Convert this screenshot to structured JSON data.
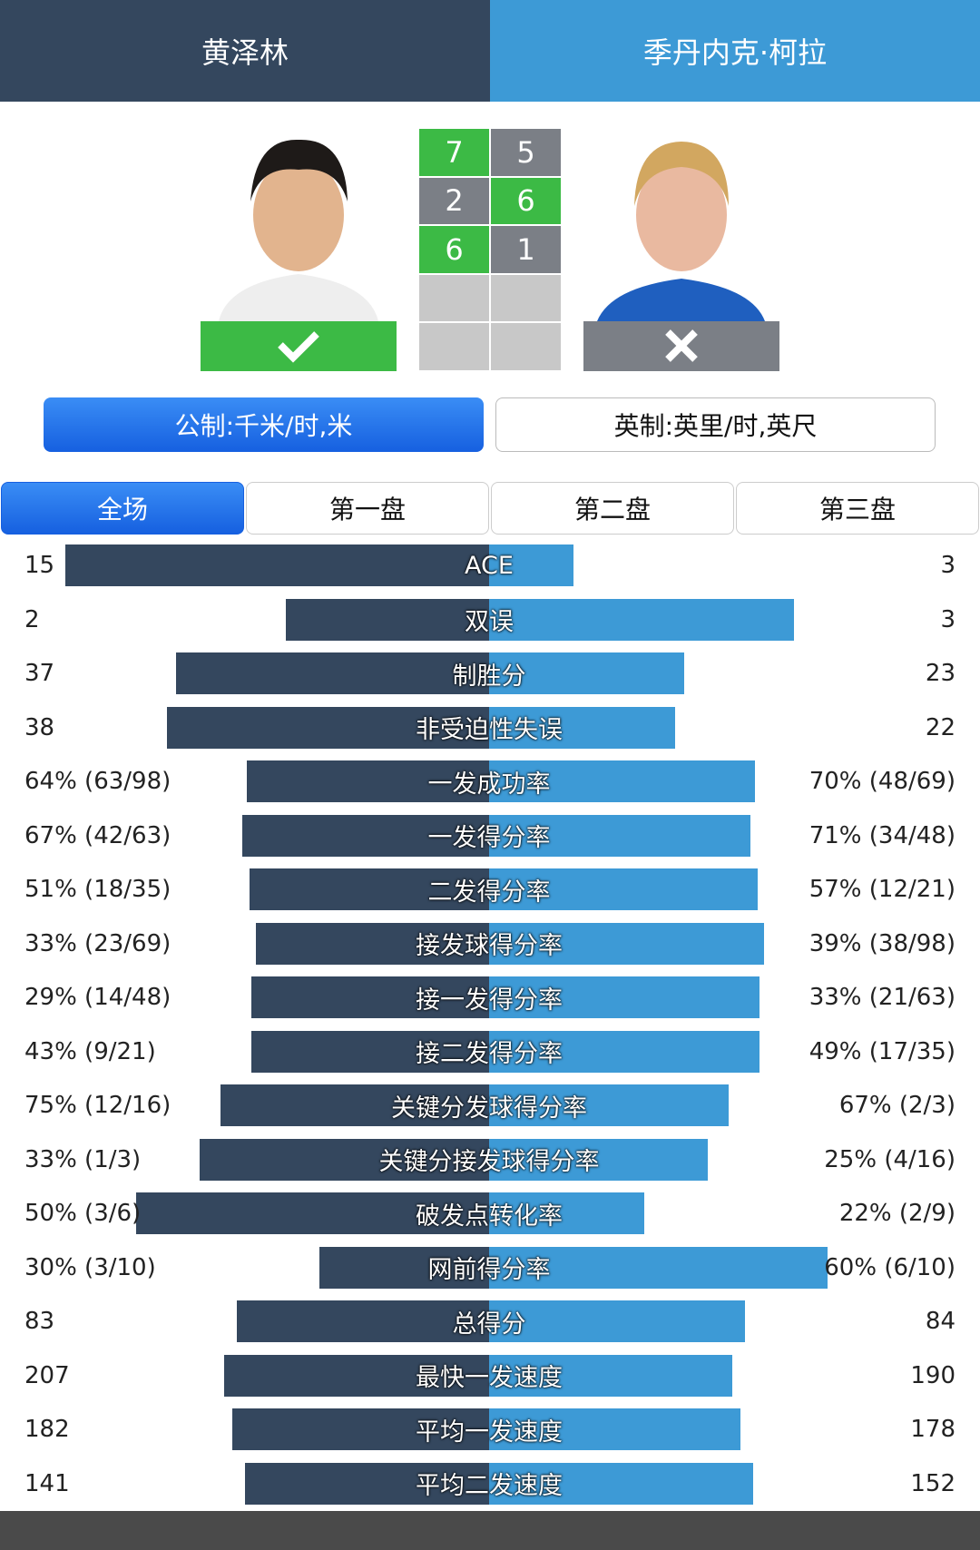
{
  "header": {
    "player1": "黄泽林",
    "player2": "季丹内克·柯拉"
  },
  "score": {
    "rows": [
      [
        7,
        5
      ],
      [
        2,
        6
      ],
      [
        6,
        1
      ],
      [
        null,
        null
      ],
      [
        null,
        null
      ]
    ],
    "winner": "player1"
  },
  "units": {
    "metric": "公制:千米/时,米",
    "imperial": "英制:英里/时,英尺"
  },
  "tabs": [
    "全场",
    "第一盘",
    "第二盘",
    "第三盘"
  ],
  "stats": [
    {
      "name": "ACE",
      "left": 15,
      "right": 3
    },
    {
      "name": "双误",
      "left": 2,
      "right": 3
    },
    {
      "name": "制胜分",
      "left": 37,
      "right": 23
    },
    {
      "name": "非受迫性失误",
      "left": 38,
      "right": 22
    },
    {
      "name": "一发成功率",
      "left": {
        "value": 64,
        "label": "64% (63/98)"
      },
      "right": {
        "value": 70,
        "label": "70% (48/69)"
      }
    },
    {
      "name": "一发得分率",
      "left": {
        "value": 67,
        "label": "67% (42/63)"
      },
      "right": {
        "value": 71,
        "label": "71% (34/48)"
      }
    },
    {
      "name": "二发得分率",
      "left": {
        "value": 51,
        "label": "51% (18/35)"
      },
      "right": {
        "value": 57,
        "label": "57% (12/21)"
      }
    },
    {
      "name": "接发球得分率",
      "left": {
        "value": 33,
        "label": "33% (23/69)"
      },
      "right": {
        "value": 39,
        "label": "39% (38/98)"
      }
    },
    {
      "name": "接一发得分率",
      "left": {
        "value": 29,
        "label": "29% (14/48)"
      },
      "right": {
        "value": 33,
        "label": "33% (21/63)"
      }
    },
    {
      "name": "接二发得分率",
      "left": {
        "value": 43,
        "label": "43% (9/21)"
      },
      "right": {
        "value": 49,
        "label": "49% (17/35)"
      }
    },
    {
      "name": "关键分发球得分率",
      "left": {
        "value": 75,
        "label": "75% (12/16)"
      },
      "right": {
        "value": 67,
        "label": "67% (2/3)"
      }
    },
    {
      "name": "关键分接发球得分率",
      "left": {
        "value": 33,
        "label": "33% (1/3)"
      },
      "right": {
        "value": 25,
        "label": "25% (4/16)"
      }
    },
    {
      "name": "破发点转化率",
      "left": {
        "value": 50,
        "label": "50% (3/6)"
      },
      "right": {
        "value": 22,
        "label": "22% (2/9)"
      }
    },
    {
      "name": "网前得分率",
      "left": {
        "value": 30,
        "label": "30% (3/10)"
      },
      "right": {
        "value": 60,
        "label": "60% (6/10)"
      }
    },
    {
      "name": "总得分",
      "left": 83,
      "right": 84
    },
    {
      "name": "最快一发速度",
      "left": 207,
      "right": 190
    },
    {
      "name": "平均一发速度",
      "left": 182,
      "right": 178
    },
    {
      "name": "平均二发速度",
      "left": 141,
      "right": 152
    }
  ]
}
